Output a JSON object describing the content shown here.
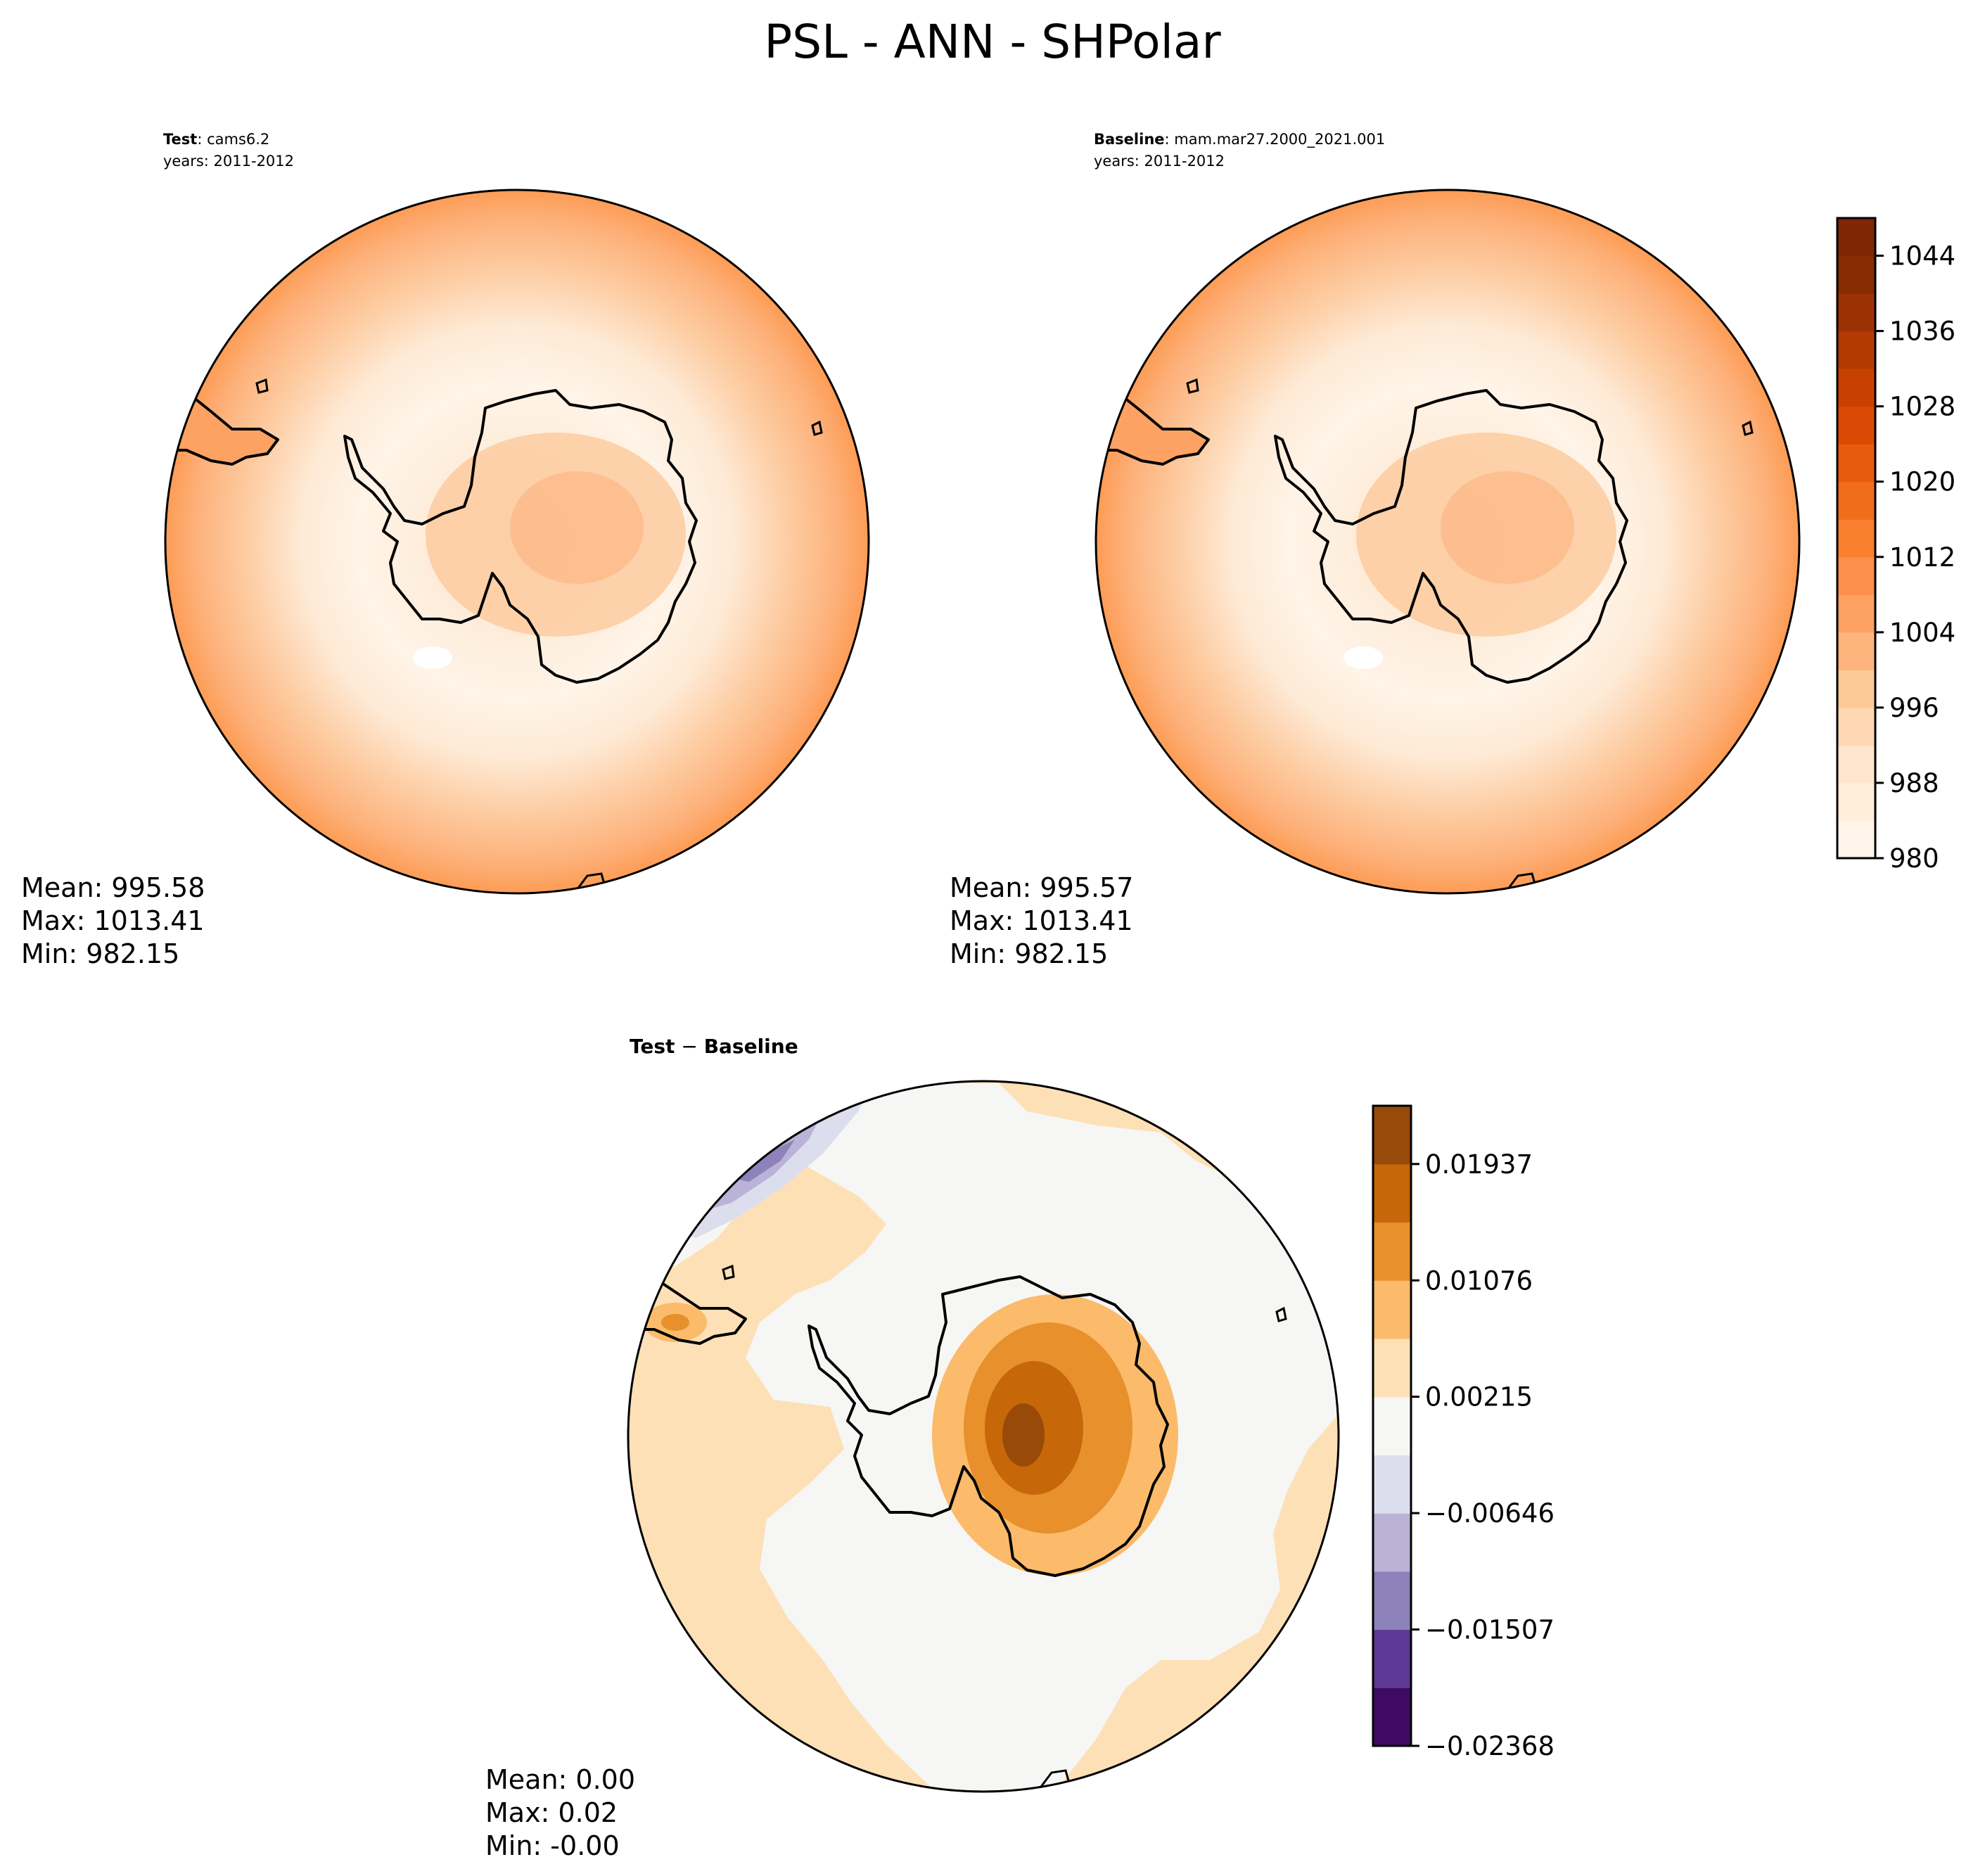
{
  "figure": {
    "title": "PSL - ANN - SHPolar"
  },
  "panels": {
    "test": {
      "label_bold": "Test",
      "label_rest": ": cams6.2",
      "years": "years: 2011-2012",
      "stats": {
        "mean": "Mean: 995.58",
        "max": "Max: 1013.41",
        "min": "Min: 982.15"
      }
    },
    "baseline": {
      "label_bold": "Baseline",
      "label_rest": ": mam.mar27.2000_2021.001",
      "years": "years: 2011-2012",
      "stats": {
        "mean": "Mean: 995.57",
        "max": "Max: 1013.41",
        "min": "Min: 982.15"
      }
    },
    "diff": {
      "label_bold_1": "Test",
      "label_sep": " − ",
      "label_bold_2": "Baseline",
      "stats": {
        "mean": "Mean:  0.00",
        "max": "Max:  0.02",
        "min": "Min: -0.00"
      }
    }
  },
  "colorbars": {
    "main": {
      "min": 980,
      "max": 1048,
      "step": 4,
      "tick_values": [
        980,
        988,
        996,
        1004,
        1012,
        1020,
        1028,
        1036,
        1044
      ],
      "tick_labels": [
        "980",
        "988",
        "996",
        "1004",
        "1012",
        "1020",
        "1028",
        "1036",
        "1044"
      ],
      "colors": [
        "#fff5eb",
        "#ffeeda",
        "#fee6ce",
        "#fdd8b3",
        "#fdc997",
        "#fdb57d",
        "#fda262",
        "#fd8f4d",
        "#f9802e",
        "#f06d1a",
        "#e85a0e",
        "#db4a04",
        "#c94102",
        "#b33a03",
        "#9c3203",
        "#862c03",
        "#7f2704"
      ]
    },
    "diff": {
      "min": -0.02368,
      "max": 0.02368,
      "tick_values": [
        -0.02368,
        -0.01507,
        -0.00646,
        0.00215,
        0.01076,
        0.01937
      ],
      "tick_labels": [
        "−0.02368",
        "−0.01507",
        "−0.00646",
        "0.00215",
        "0.01076",
        "0.01937"
      ],
      "colors": [
        "#3f0a63",
        "#5e3895",
        "#8d82b9",
        "#bab3d7",
        "#dddeed",
        "#f6f6f4",
        "#fde0b6",
        "#fbbb6b",
        "#e8902c",
        "#c66709",
        "#984a08"
      ]
    }
  }
}
